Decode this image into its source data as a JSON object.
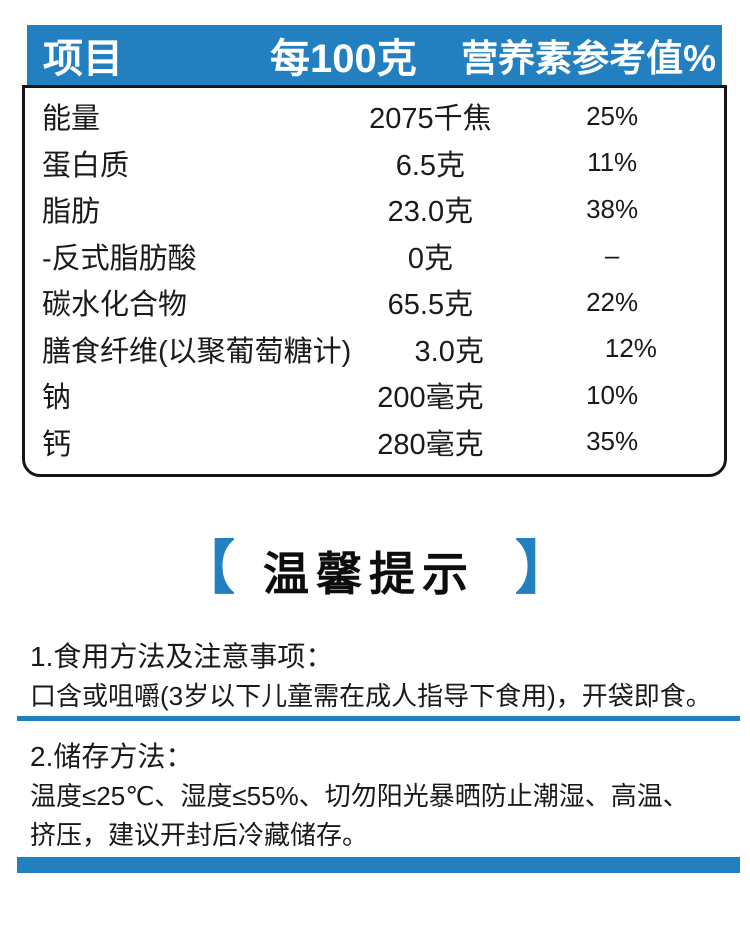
{
  "colors": {
    "accent": "#2280c0",
    "table_border": "#161616",
    "header_text": "#ffffff"
  },
  "nutrition_table": {
    "headers": [
      "项目",
      "每100克",
      "营养素参考值%"
    ],
    "rows": [
      {
        "name": "能量",
        "value": "2075千焦",
        "nrv": "25%"
      },
      {
        "name": "蛋白质",
        "value": "6.5克",
        "nrv": "11%"
      },
      {
        "name": "脂肪",
        "value": "23.0克",
        "nrv": "38%"
      },
      {
        "name": "-反式脂肪酸",
        "value": "0克",
        "nrv": "–"
      },
      {
        "name": "碳水化合物",
        "value": "65.5克",
        "nrv": "22%"
      },
      {
        "name": "膳食纤维(以聚葡萄糖计)",
        "value": "3.0克",
        "nrv": "12%"
      },
      {
        "name": "钠",
        "value": "200毫克",
        "nrv": "10%"
      },
      {
        "name": "钙",
        "value": "280毫克",
        "nrv": "35%"
      }
    ]
  },
  "tips": {
    "bracket_left": "【",
    "heading": "温馨提示",
    "bracket_right": "】",
    "sections": [
      {
        "title": "1.食用方法及注意事项：",
        "body": "口含或咀嚼(3岁以下儿童需在成人指导下食用)，开袋即食。"
      },
      {
        "title": "2.储存方法：",
        "body": "温度≤25℃、湿度≤55%、切勿阳光暴晒防止潮湿、高温、\n挤压，建议开封后冷藏储存。"
      }
    ]
  }
}
